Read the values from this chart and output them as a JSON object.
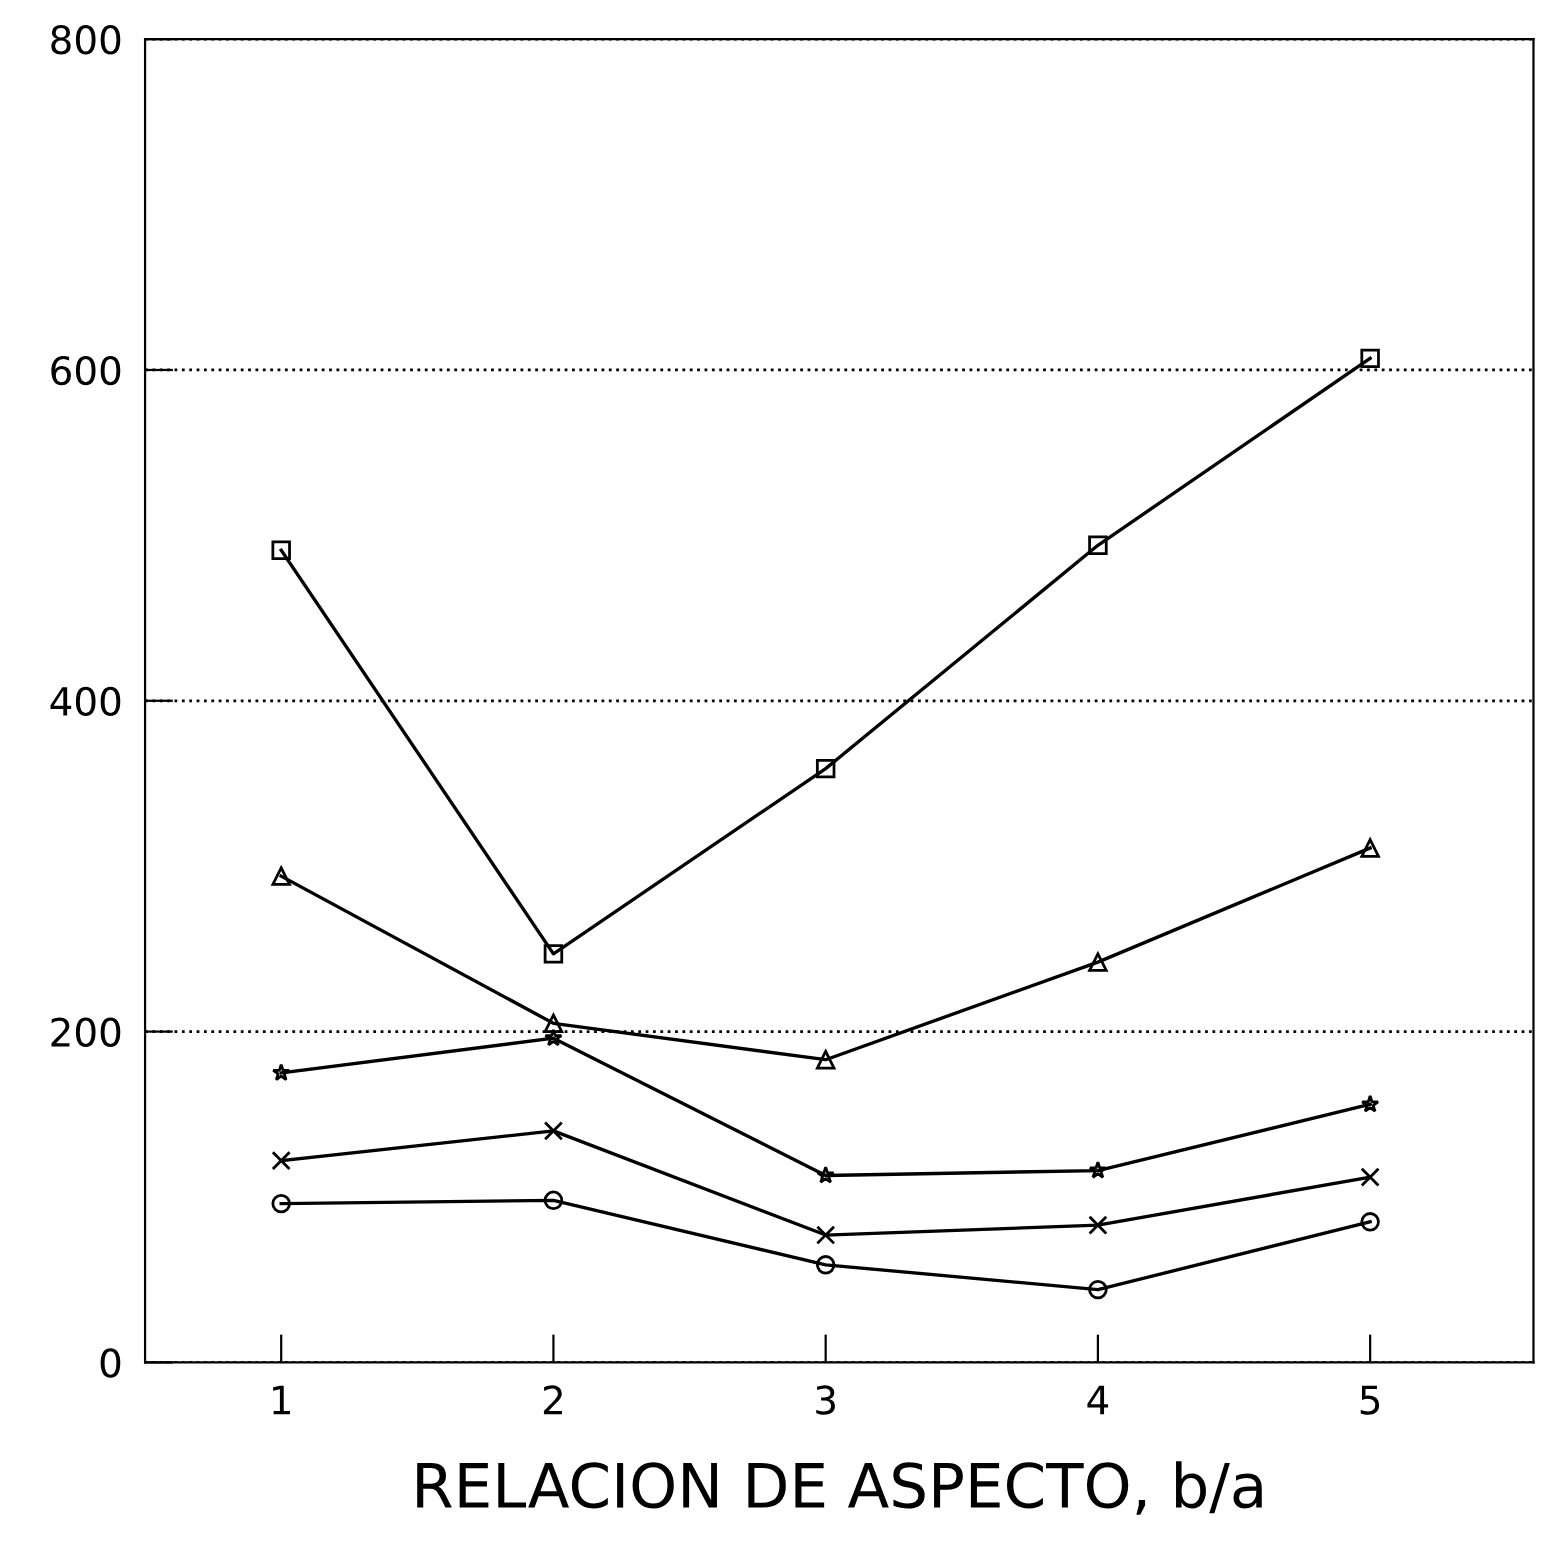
{
  "chart_data": {
    "type": "line",
    "xlabel": "RELACION DE ASPECTO, b/a",
    "x": [
      1,
      2,
      3,
      4,
      5
    ],
    "series": [
      {
        "color": "#000000",
        "marker": "square",
        "values": [
          491,
          247,
          359,
          494,
          607
        ]
      },
      {
        "color": "#000000",
        "marker": "triangle",
        "values": [
          294,
          205,
          183,
          242,
          311
        ]
      },
      {
        "color": "#000000",
        "marker": "star",
        "values": [
          175,
          196,
          113,
          116,
          156
        ]
      },
      {
        "color": "#000000",
        "marker": "cross",
        "values": [
          122,
          140,
          77,
          83,
          112
        ]
      },
      {
        "color": "#000000",
        "marker": "circle",
        "values": [
          96,
          98,
          59,
          44,
          85
        ]
      }
    ],
    "xlim": [
      0.5,
      5.6
    ],
    "ylim": [
      0,
      800
    ],
    "xticks": [
      1,
      2,
      3,
      4,
      5
    ],
    "yticks": [
      0,
      200,
      400,
      600,
      800
    ],
    "grid": "y",
    "line_style": "solid"
  }
}
